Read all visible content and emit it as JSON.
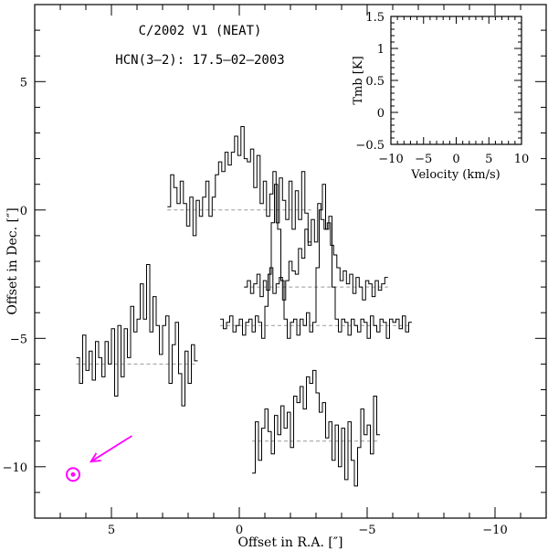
{
  "chart_data": {
    "type": "line",
    "title": "C/2002 V1 (NEAT)",
    "subtitle": "HCN(3–2): 17.5–02–2003",
    "xlabel": "Offset in R.A. [″]",
    "ylabel": "Offset in Dec. [″]",
    "xlim": [
      8,
      -12
    ],
    "ylim": [
      -12,
      8
    ],
    "xticks": [
      {
        "v": 5,
        "label": "5"
      },
      {
        "v": 0,
        "label": "0"
      },
      {
        "v": -5,
        "label": "−5"
      },
      {
        "v": -10,
        "label": "−10"
      }
    ],
    "yticks": [
      {
        "v": 5,
        "label": "5"
      },
      {
        "v": 0,
        "label": "0"
      },
      {
        "v": -5,
        "label": "−5"
      },
      {
        "v": -10,
        "label": "−10"
      }
    ],
    "spectra": [
      {
        "ra": 0,
        "dec": 0,
        "values": [
          0.05,
          0.55,
          0.35,
          0.1,
          0.45,
          0.1,
          -0.25,
          0.2,
          -0.4,
          0.15,
          -0.1,
          0.2,
          0.45,
          -0.1,
          0.2,
          0.55,
          0.75,
          0.6,
          0.9,
          0.7,
          0.9,
          1.15,
          0.85,
          1.3,
          0.8,
          0.75,
          0.95,
          0.35,
          0.85,
          0.1,
          0.45,
          -0.1,
          0.25,
          0.6,
          -0.2,
          0.5,
          0.15,
          -0.15,
          0.45,
          -0.3,
          0.3,
          -0.15,
          0.6,
          -0.05,
          -0.5
        ]
      },
      {
        "ra": -3,
        "dec": -3,
        "values": [
          0,
          0.1,
          -0.1,
          0.05,
          0.2,
          -0.15,
          0.1,
          -0.05,
          0.3,
          -0.1,
          0.05,
          0.15,
          -0.2,
          0.1,
          0.4,
          0.25,
          0.2,
          0.6,
          0.45,
          0.9,
          0.65,
          1.05,
          0.7,
          1.3,
          1.05,
          0.9,
          1.0,
          0.65,
          0.5,
          0.3,
          0.1,
          0.25,
          0.05,
          0.2,
          -0.1,
          0.15,
          0,
          -0.2,
          0.1,
          0.05,
          -0.15,
          0.1,
          -0.05,
          0.05,
          0.15
        ]
      },
      {
        "ra": -3,
        "dec": -4.5,
        "values": [
          0.1,
          -0.05,
          0.05,
          0.15,
          -0.1,
          0,
          0.1,
          -0.15,
          0.05,
          0.1,
          -0.1,
          0.15,
          0.05,
          -0.2,
          0.3,
          0.8,
          1.6,
          2.2,
          1.5,
          0.7,
          0.1,
          -0.2,
          0.05,
          0.1,
          -0.15,
          0.1,
          0,
          0.2,
          -0.1,
          0.05,
          0.9,
          1.8,
          2.2,
          1.5,
          1.7,
          0.6,
          0.1,
          -0.1,
          0.1,
          0.05,
          -0.15,
          0.1,
          0,
          -0.1,
          0.1,
          0.05,
          -0.2,
          0.15,
          0,
          -0.1,
          0.1,
          0.05,
          -0.2,
          0.1,
          0.05,
          0.1,
          -0.05,
          0.15,
          -0.1,
          0.05
        ]
      },
      {
        "ra": 4,
        "dec": -6,
        "values": [
          0.1,
          -0.3,
          0.45,
          -0.1,
          0.2,
          -0.25,
          0.35,
          0.1,
          -0.2,
          0.35,
          0,
          0.55,
          -0.5,
          0.6,
          -0.2,
          0.55,
          0.1,
          0.9,
          0.5,
          0.7,
          1.25,
          0.7,
          1.55,
          0.5,
          1.05,
          0.6,
          0.15,
          0.6,
          0.75,
          -0.3,
          0.3,
          0.65,
          -0.15,
          -0.65,
          0.2,
          -0.3,
          0.3,
          0.05
        ]
      },
      {
        "ra": -3,
        "dec": -9,
        "values": [
          -0.5,
          0.3,
          -0.3,
          0.2,
          0.5,
          0.15,
          -0.2,
          0.4,
          0.1,
          0.55,
          0.2,
          0.45,
          -0.1,
          0.7,
          0.6,
          0.85,
          0.5,
          1.0,
          0.9,
          1.1,
          0.75,
          0.45,
          0.6,
          0.05,
          0.3,
          -0.3,
          0.25,
          -0.4,
          0.2,
          -0.6,
          0.3,
          -0.3,
          -0.7,
          -0.1,
          0.5,
          0.1,
          0.25,
          -0.2,
          0.7,
          0.1
        ]
      }
    ],
    "inset": {
      "xlabel": "Velocity (km/s)",
      "ylabel": "Tmb [K]",
      "xlim": [
        -10,
        10
      ],
      "ylim": [
        -0.5,
        1.5
      ],
      "xticks": [
        {
          "v": -10,
          "label": "−10"
        },
        {
          "v": -5,
          "label": "−5"
        },
        {
          "v": 0,
          "label": "0"
        },
        {
          "v": 5,
          "label": "5"
        },
        {
          "v": 10,
          "label": "10"
        }
      ],
      "yticks": [
        {
          "v": -0.5,
          "label": "−0.5"
        },
        {
          "v": 0,
          "label": "0"
        },
        {
          "v": 0.5,
          "label": "0.5"
        },
        {
          "v": 1,
          "label": "1"
        },
        {
          "v": 1.5,
          "label": "1.5"
        }
      ]
    },
    "marker": {
      "ra": 6.5,
      "dec": -10.3,
      "symbol": "sun",
      "color": "#ff00ff"
    },
    "arrow": {
      "from_ra": 4.2,
      "from_dec": -8.8,
      "to_ra": 5.8,
      "to_dec": -9.8,
      "color": "#ff00ff"
    },
    "grid": false,
    "legend": "none"
  }
}
